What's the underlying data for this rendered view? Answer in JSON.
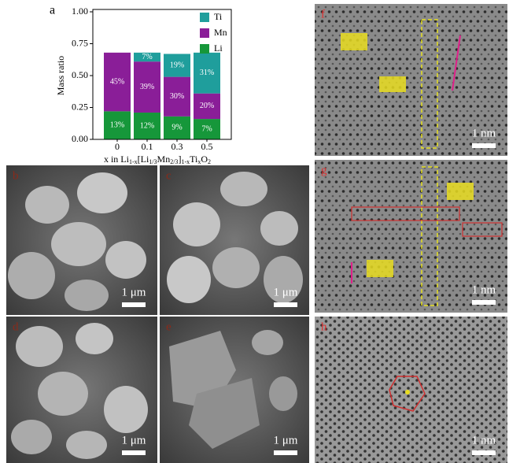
{
  "chart_data": {
    "type": "stacked-bar",
    "label": "a",
    "ylabel": "Mass ratio",
    "xlabel_parts": [
      "x in Li",
      "1-x",
      "[Li",
      "1/3",
      "Mn",
      "2/3",
      "]",
      "1-x",
      "Ti",
      "x",
      "O",
      "2"
    ],
    "categories": [
      "0",
      "0.1",
      "0.3",
      "0.5"
    ],
    "series": [
      {
        "name": "Li",
        "color": "#16973a",
        "values": [
          0.22,
          0.21,
          0.18,
          0.16
        ],
        "annotations": [
          "13%",
          "12%",
          "9%",
          "7%"
        ]
      },
      {
        "name": "Mn",
        "color": "#8a1e98",
        "values": [
          0.46,
          0.4,
          0.31,
          0.2
        ],
        "annotations": [
          "45%",
          "39%",
          "30%",
          "20%"
        ]
      },
      {
        "name": "Ti",
        "color": "#1f9e9c",
        "values": [
          null,
          0.07,
          0.18,
          0.32
        ],
        "annotations": [
          null,
          "7%",
          "19%",
          "31%"
        ]
      }
    ],
    "ylim": [
      0,
      1
    ],
    "yticks": [
      {
        "value": 0,
        "label": "0.00"
      },
      {
        "value": 0.25,
        "label": "0.25"
      },
      {
        "value": 0.5,
        "label": "0.50"
      },
      {
        "value": 0.75,
        "label": "0.75"
      },
      {
        "value": 1,
        "label": "1.00"
      }
    ],
    "legend": "upper right"
  },
  "panels": [
    {
      "label": "b",
      "scale_bar": "1 μm"
    },
    {
      "label": "c",
      "scale_bar": "1 μm"
    },
    {
      "label": "d",
      "scale_bar": "1 μm"
    },
    {
      "label": "e",
      "scale_bar": "1 μm"
    },
    {
      "label": "f",
      "scale_bar": "1 nm"
    },
    {
      "label": "g",
      "scale_bar": "1 nm"
    },
    {
      "label": "h",
      "scale_bar": "1 nm"
    }
  ]
}
